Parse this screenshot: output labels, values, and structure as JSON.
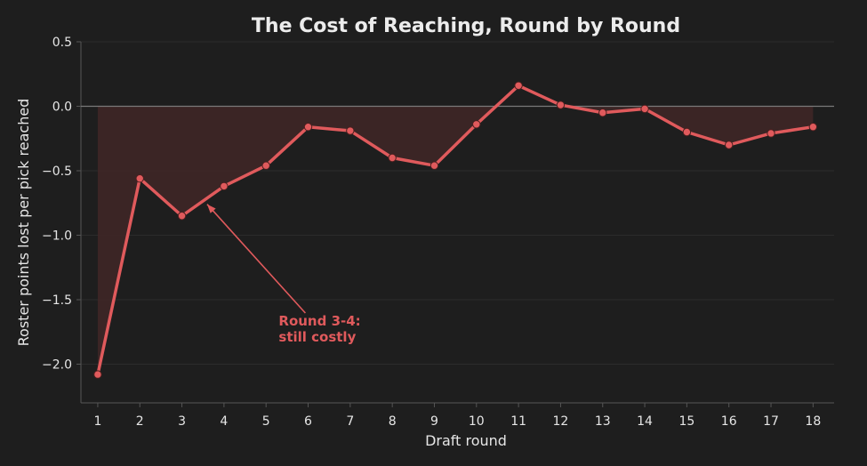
{
  "chart_data": {
    "type": "line",
    "title": "The Cost of Reaching, Round by Round",
    "xlabel": "Draft round",
    "ylabel": "Roster points lost per pick reached",
    "x": [
      1,
      2,
      3,
      4,
      5,
      6,
      7,
      8,
      9,
      10,
      11,
      12,
      13,
      14,
      15,
      16,
      17,
      18
    ],
    "series": [
      {
        "values": [
          -2.08,
          -0.56,
          -0.85,
          -0.62,
          -0.46,
          -0.16,
          -0.19,
          -0.4,
          -0.46,
          -0.14,
          0.16,
          0.01,
          -0.05,
          -0.02,
          -0.2,
          -0.3,
          -0.21,
          -0.16
        ]
      }
    ],
    "ylim": [
      -2.3,
      0.5
    ],
    "yticks": [
      0.5,
      0.0,
      -0.5,
      -1.0,
      -1.5,
      -2.0
    ],
    "ytick_labels": [
      "0.5",
      "0.0",
      "−0.5",
      "−1.0",
      "−1.5",
      "−2.0"
    ],
    "xticks": [
      1,
      2,
      3,
      4,
      5,
      6,
      7,
      8,
      9,
      10,
      11,
      12,
      13,
      14,
      15,
      16,
      17,
      18
    ],
    "baseline": 0,
    "grid": true,
    "annotation": {
      "lines": [
        "Round 3-4:",
        "still costly"
      ],
      "target_x": 3.6,
      "target_y": -0.76,
      "text_x": 5.3,
      "text_y": -1.7
    },
    "colors": {
      "background": "#1e1e1e",
      "line": "#e05a5c",
      "fill": "#3d2626",
      "grid": "#2c2c2c",
      "baseline": "#7a7a7a",
      "axis": "#555555",
      "text": "#e6e6e6"
    }
  }
}
